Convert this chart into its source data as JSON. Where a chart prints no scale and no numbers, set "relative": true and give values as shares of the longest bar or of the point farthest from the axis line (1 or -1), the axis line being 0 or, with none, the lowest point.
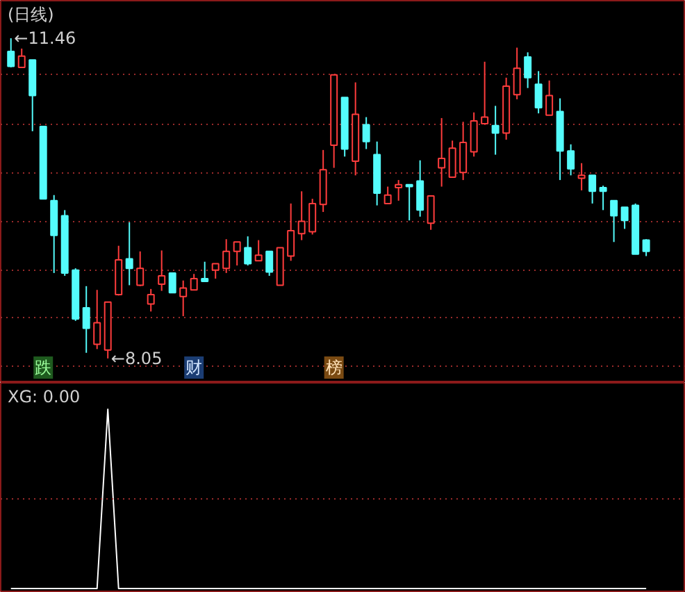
{
  "chart_data": [
    {
      "type": "candlestick",
      "title": "(日线)",
      "categories": [
        null,
        null,
        null,
        null,
        null,
        null,
        null,
        null,
        null,
        null,
        null,
        null,
        null,
        null,
        null,
        null,
        null,
        null,
        null,
        null,
        null,
        null,
        null,
        null,
        null,
        null,
        null,
        null,
        null,
        null,
        null,
        null,
        null,
        null,
        null,
        null,
        null,
        null,
        null,
        null,
        null,
        null,
        null,
        null,
        null,
        null,
        null,
        null,
        null,
        null,
        null,
        null,
        null,
        null,
        null,
        null,
        null,
        null,
        null,
        null
      ],
      "ohlc": [
        [
          11.32,
          11.46,
          11.15,
          11.16
        ],
        [
          11.15,
          11.35,
          11.15,
          11.27
        ],
        [
          11.23,
          11.23,
          10.47,
          10.85
        ],
        [
          10.52,
          10.52,
          9.75,
          9.75
        ],
        [
          9.73,
          9.79,
          8.96,
          9.36
        ],
        [
          9.57,
          9.63,
          8.93,
          8.96
        ],
        [
          8.99,
          9.01,
          8.45,
          8.47
        ],
        [
          8.59,
          8.82,
          8.11,
          8.37
        ],
        [
          8.2,
          8.78,
          8.15,
          8.43
        ],
        [
          8.14,
          8.65,
          8.05,
          8.65
        ],
        [
          8.73,
          9.25,
          8.72,
          9.1
        ],
        [
          9.11,
          9.5,
          8.83,
          9.01
        ],
        [
          8.83,
          9.19,
          8.82,
          9.01
        ],
        [
          8.63,
          8.79,
          8.55,
          8.73
        ],
        [
          8.84,
          9.2,
          8.77,
          8.93
        ],
        [
          8.96,
          8.96,
          8.75,
          8.75
        ],
        [
          8.71,
          8.88,
          8.5,
          8.8
        ],
        [
          8.78,
          8.95,
          8.78,
          8.9
        ],
        [
          8.9,
          9.08,
          8.87,
          8.87
        ],
        [
          8.99,
          9.06,
          8.9,
          9.06
        ],
        [
          9.01,
          9.32,
          8.96,
          9.19
        ],
        [
          9.19,
          9.29,
          9.04,
          9.29
        ],
        [
          9.23,
          9.35,
          9.04,
          9.06
        ],
        [
          9.09,
          9.31,
          9.09,
          9.15
        ],
        [
          9.19,
          9.19,
          8.93,
          8.97
        ],
        [
          8.83,
          9.23,
          8.83,
          9.23
        ],
        [
          9.14,
          9.7,
          9.09,
          9.41
        ],
        [
          9.38,
          9.83,
          9.31,
          9.51
        ],
        [
          9.4,
          9.75,
          9.37,
          9.7
        ],
        [
          9.69,
          10.27,
          9.61,
          10.06
        ],
        [
          10.32,
          11.07,
          10.08,
          11.07
        ],
        [
          10.83,
          10.83,
          10.2,
          10.28
        ],
        [
          10.15,
          10.99,
          10.0,
          10.65
        ],
        [
          10.54,
          10.62,
          10.28,
          10.36
        ],
        [
          10.22,
          10.36,
          9.68,
          9.81
        ],
        [
          9.7,
          9.88,
          9.7,
          9.79
        ],
        [
          9.87,
          9.95,
          9.73,
          9.9
        ],
        [
          9.9,
          9.9,
          9.52,
          9.88
        ],
        [
          9.94,
          10.16,
          9.56,
          9.63
        ],
        [
          9.49,
          9.78,
          9.42,
          9.78
        ],
        [
          10.08,
          10.61,
          9.88,
          10.18
        ],
        [
          9.98,
          10.37,
          9.98,
          10.29
        ],
        [
          10.03,
          10.57,
          9.95,
          10.35
        ],
        [
          10.25,
          10.67,
          10.2,
          10.58
        ],
        [
          10.55,
          11.21,
          10.55,
          10.62
        ],
        [
          10.53,
          10.74,
          10.22,
          10.45
        ],
        [
          10.45,
          11.04,
          10.38,
          10.95
        ],
        [
          10.86,
          11.36,
          10.81,
          11.14
        ],
        [
          11.26,
          11.31,
          10.93,
          11.04
        ],
        [
          10.97,
          11.11,
          10.66,
          10.72
        ],
        [
          10.64,
          11.01,
          10.64,
          10.85
        ],
        [
          10.68,
          10.82,
          9.95,
          10.26
        ],
        [
          10.26,
          10.33,
          10.0,
          10.07
        ],
        [
          9.97,
          10.13,
          9.84,
          10.0
        ],
        [
          10.0,
          10.0,
          9.7,
          9.83
        ],
        [
          9.87,
          9.89,
          9.63,
          9.83
        ],
        [
          9.73,
          9.73,
          9.29,
          9.57
        ],
        [
          9.66,
          9.66,
          9.43,
          9.52
        ],
        [
          9.68,
          9.7,
          9.16,
          9.16
        ],
        [
          9.31,
          9.32,
          9.14,
          9.19
        ]
      ],
      "colors": [
        "#54fcfc",
        "#ff3c3c",
        "#54fcfc",
        "#54fcfc",
        "#54fcfc",
        "#54fcfc",
        "#54fcfc",
        "#54fcfc",
        "#ff3c3c",
        "#ff3c3c",
        "#ff3c3c",
        "#54fcfc",
        "#ff3c3c",
        "#ff3c3c",
        "#ff3c3c",
        "#54fcfc",
        "#ff3c3c",
        "#ff3c3c",
        "#54fcfc",
        "#ff3c3c",
        "#ff3c3c",
        "#ff3c3c",
        "#54fcfc",
        "#ff3c3c",
        "#54fcfc",
        "#ff3c3c",
        "#ff3c3c",
        "#ff3c3c",
        "#ff3c3c",
        "#ff3c3c",
        "#ff3c3c",
        "#54fcfc",
        "#ff3c3c",
        "#54fcfc",
        "#54fcfc",
        "#ff3c3c",
        "#ff3c3c",
        "#54fcfc",
        "#54fcfc",
        "#ff3c3c",
        "#ff3c3c",
        "#ff3c3c",
        "#ff3c3c",
        "#ff3c3c",
        "#ff3c3c",
        "#54fcfc",
        "#ff3c3c",
        "#ff3c3c",
        "#54fcfc",
        "#54fcfc",
        "#ff3c3c",
        "#54fcfc",
        "#54fcfc",
        "#ff3c3c",
        "#54fcfc",
        "#54fcfc",
        "#54fcfc",
        "#54fcfc",
        "#54fcfc",
        "#54fcfc"
      ],
      "ylim": [
        7.79,
        11.86
      ],
      "yticks": [
        {
          "value": 7.97,
          "label": null
        },
        {
          "value": 8.49,
          "label": null
        },
        {
          "value": 8.99,
          "label": null
        },
        {
          "value": 9.51,
          "label": null
        },
        {
          "value": 10.02,
          "label": null
        },
        {
          "value": 10.54,
          "label": null
        },
        {
          "value": 11.07,
          "label": null
        }
      ],
      "grid": "y",
      "tick_labels": false,
      "annotations": [
        "←11.46",
        "←8.05",
        "跌",
        "财",
        "榜"
      ]
    },
    {
      "type": "line",
      "title": "XG: 0.00",
      "categories": [
        null,
        null,
        null,
        null,
        null,
        null,
        null,
        null,
        null,
        null,
        null,
        null,
        null,
        null,
        null,
        null,
        null,
        null,
        null,
        null,
        null,
        null,
        null,
        null,
        null,
        null,
        null,
        null,
        null,
        null,
        null,
        null,
        null,
        null,
        null,
        null,
        null,
        null,
        null,
        null,
        null,
        null,
        null,
        null,
        null,
        null,
        null,
        null,
        null,
        null,
        null,
        null,
        null,
        null,
        null,
        null,
        null,
        null,
        null,
        null
      ],
      "values": [
        0,
        0,
        0,
        0,
        0,
        0,
        0,
        0,
        0,
        1,
        0,
        0,
        0,
        0,
        0,
        0,
        0,
        0,
        0,
        0,
        0,
        0,
        0,
        0,
        0,
        0,
        0,
        0,
        0,
        0,
        0,
        0,
        0,
        0,
        0,
        0,
        0,
        0,
        0,
        0,
        0,
        0,
        0,
        0,
        0,
        0,
        0,
        0,
        0,
        0,
        0,
        0,
        0,
        0,
        0,
        0,
        0,
        0,
        0,
        0
      ],
      "color": "#ffffff",
      "relative": true,
      "tick_labels": false,
      "ref_lines": [
        {
          "axis": "y",
          "value": 0.5,
          "color": "#9a2a2a",
          "line_style": "dotted"
        }
      ]
    }
  ]
}
